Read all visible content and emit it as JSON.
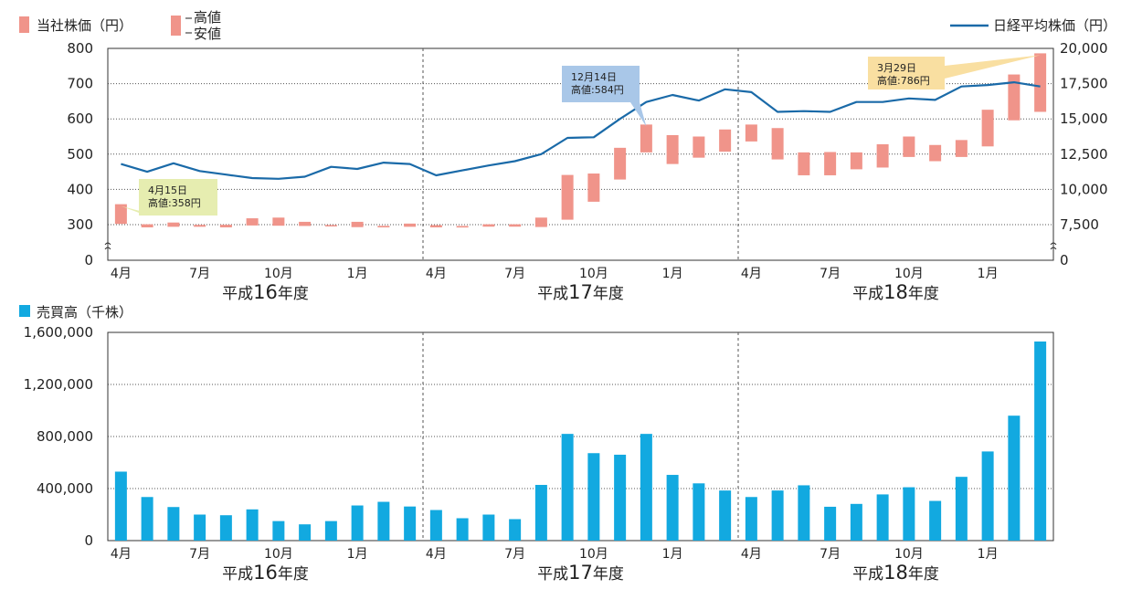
{
  "chart_data": [
    {
      "type": "bar",
      "legend": {
        "price": "当社株価（円）",
        "high": "高値",
        "low": "安値",
        "nikkei": "日経平均株価（円）"
      },
      "y_left": {
        "ticks": [
          0,
          300,
          400,
          500,
          600,
          700,
          800
        ],
        "labels": [
          "0",
          "300",
          "400",
          "500",
          "600",
          "700",
          "800"
        ]
      },
      "y_right": {
        "ticks": [
          0,
          7500,
          10000,
          12500,
          15000,
          17500,
          20000
        ],
        "labels": [
          "0",
          "7,500",
          "10,000",
          "12,500",
          "15,000",
          "17,500",
          "20,000"
        ]
      },
      "x_month_labels": [
        {
          "index": 0,
          "label": "4月"
        },
        {
          "index": 3,
          "label": "7月"
        },
        {
          "index": 6,
          "label": "10月"
        },
        {
          "index": 9,
          "label": "1月"
        },
        {
          "index": 12,
          "label": "4月"
        },
        {
          "index": 15,
          "label": "7月"
        },
        {
          "index": 18,
          "label": "10月"
        },
        {
          "index": 21,
          "label": "1月"
        },
        {
          "index": 24,
          "label": "4月"
        },
        {
          "index": 27,
          "label": "7月"
        },
        {
          "index": 30,
          "label": "10月"
        },
        {
          "index": 33,
          "label": "1月"
        }
      ],
      "fiscal_years": [
        {
          "prefix": "平成",
          "num": "16",
          "suffix": "年度",
          "center_index": 5.5
        },
        {
          "prefix": "平成",
          "num": "17",
          "suffix": "年度",
          "center_index": 17.5
        },
        {
          "prefix": "平成",
          "num": "18",
          "suffix": "年度",
          "center_index": 29.5
        }
      ],
      "dividers_after_index": [
        11,
        23
      ],
      "stock_high": [
        358,
        301,
        306,
        298,
        299,
        318,
        320,
        308,
        297,
        308,
        290,
        303,
        296,
        289,
        301,
        301,
        320,
        441,
        445,
        518,
        584,
        554,
        550,
        570,
        584,
        574,
        505,
        506,
        505,
        528,
        550,
        526,
        540,
        626,
        726,
        786
      ],
      "stock_low": [
        302,
        277,
        282,
        282,
        277,
        293,
        291,
        289,
        285,
        279,
        277,
        282,
        277,
        276,
        283,
        283,
        280,
        314,
        365,
        428,
        505,
        472,
        490,
        507,
        536,
        485,
        440,
        440,
        457,
        462,
        492,
        480,
        492,
        522,
        596,
        620
      ],
      "nikkei": [
        11800,
        11250,
        11850,
        11300,
        11050,
        10800,
        10750,
        10900,
        11600,
        11450,
        11900,
        11800,
        11000,
        11350,
        11700,
        12000,
        12500,
        13650,
        13700,
        15000,
        16200,
        16700,
        16300,
        17100,
        16900,
        15500,
        15550,
        15500,
        16200,
        16200,
        16450,
        16350,
        17300,
        17400,
        17600,
        17300
      ],
      "callouts": [
        {
          "index": 0,
          "date": "4月15日",
          "value": "高値:358円",
          "fill": "#e6edb0"
        },
        {
          "index": 20,
          "date": "12月14日",
          "value": "高値:584円",
          "fill": "#a9c7e8"
        },
        {
          "index": 35,
          "date": "3月29日",
          "value": "高値:786円",
          "fill": "#f9dfa1"
        }
      ],
      "colors": {
        "stock": "#f0948a",
        "nikkei": "#1a6aa8",
        "grid": "#555555"
      }
    },
    {
      "type": "bar",
      "legend": {
        "volume": "売買高（千株）"
      },
      "y": {
        "ticks": [
          0,
          400000,
          800000,
          1200000,
          1600000
        ],
        "labels": [
          "0",
          "400,000",
          "800,000",
          "1,200,000",
          "1,600,000"
        ]
      },
      "values": [
        530000,
        335000,
        258000,
        200000,
        195000,
        240000,
        150000,
        125000,
        150000,
        270000,
        298000,
        262000,
        235000,
        172000,
        200000,
        165000,
        428000,
        820000,
        672000,
        660000,
        820000,
        505000,
        440000,
        385000,
        335000,
        385000,
        425000,
        260000,
        282000,
        355000,
        410000,
        305000,
        490000,
        685000,
        960000,
        1530000
      ],
      "colors": {
        "bar": "#12a9e0"
      }
    }
  ]
}
